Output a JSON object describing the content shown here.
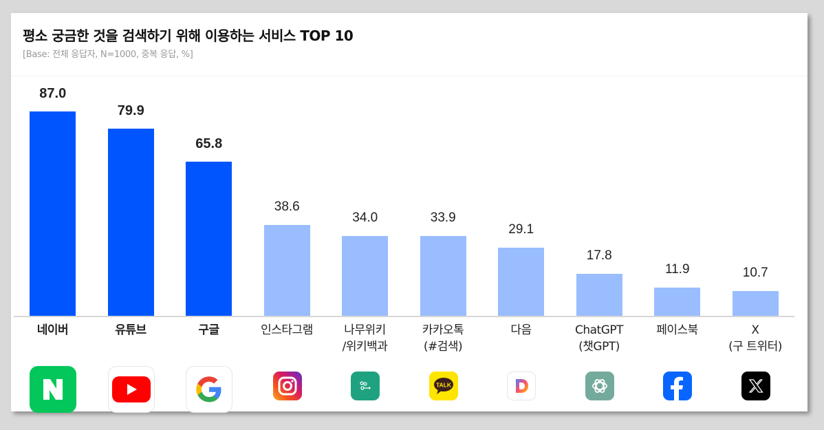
{
  "header": {
    "title": "평소 궁금한 것을 검색하기 위해 이용하는 서비스 TOP 10",
    "subtitle": "[Base: 전체 응답자, N=1000, 중복 응답, %]"
  },
  "colors": {
    "highlight_bar": "#0055ff",
    "normal_bar": "#99bdff",
    "baseline": "#d6d6d6"
  },
  "bars": [
    {
      "label": "네이버",
      "value": "87.0",
      "highlight": true,
      "icon": "naver-icon"
    },
    {
      "label": "유튜브",
      "value": "79.9",
      "highlight": true,
      "icon": "youtube-icon"
    },
    {
      "label": "구글",
      "value": "65.8",
      "highlight": true,
      "icon": "google-icon"
    },
    {
      "label": "인스타그램",
      "value": "38.6",
      "highlight": false,
      "icon": "instagram-icon"
    },
    {
      "label": "나무위키\n/위키백과",
      "label_line1": "나무위키",
      "label_line2": "/위키백과",
      "value": "34.0",
      "highlight": false,
      "icon": "namuwiki-icon"
    },
    {
      "label": "카카오톡\n(#검색)",
      "label_line1": "카카오톡",
      "label_line2": "(#검색)",
      "value": "33.9",
      "highlight": false,
      "icon": "kakaotalk-icon"
    },
    {
      "label": "다음",
      "value": "29.1",
      "highlight": false,
      "icon": "daum-icon"
    },
    {
      "label": "ChatGPT\n(챗GPT)",
      "label_line1": "ChatGPT",
      "label_line2": "(챗GPT)",
      "value": "17.8",
      "highlight": false,
      "icon": "chatgpt-icon"
    },
    {
      "label": "페이스북",
      "value": "11.9",
      "highlight": false,
      "icon": "facebook-icon"
    },
    {
      "label": "X\n(구 트위터)",
      "label_line1": "X",
      "label_line2": "(구 트위터)",
      "value": "10.7",
      "highlight": false,
      "icon": "x-twitter-icon"
    }
  ],
  "chart_data": {
    "type": "bar",
    "title": "평소 궁금한 것을 검색하기 위해 이용하는 서비스 TOP 10",
    "subtitle": "[Base: 전체 응답자, N=1000, 중복 응답, %]",
    "categories": [
      "네이버",
      "유튜브",
      "구글",
      "인스타그램",
      "나무위키/위키백과",
      "카카오톡(#검색)",
      "다음",
      "ChatGPT(챗GPT)",
      "페이스북",
      "X(구 트위터)"
    ],
    "values": [
      87.0,
      79.9,
      65.8,
      38.6,
      34.0,
      33.9,
      29.1,
      17.8,
      11.9,
      10.7
    ],
    "highlighted_categories": [
      "네이버",
      "유튜브",
      "구글"
    ],
    "xlabel": "",
    "ylabel": "%",
    "ylim": [
      0,
      100
    ],
    "grid": false,
    "legend": "none",
    "data_labels": true
  }
}
